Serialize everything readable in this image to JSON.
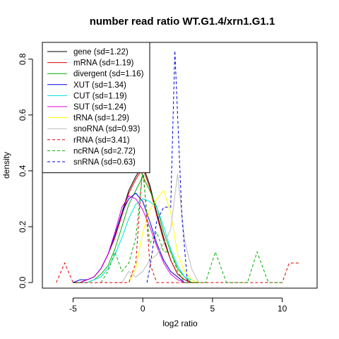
{
  "chart_data": {
    "type": "line",
    "title": "number read ratio WT.G1.4/xrn1.G1.1",
    "xlabel": "log2 ratio",
    "ylabel": "density",
    "xlim": [
      -7.2,
      12.5
    ],
    "ylim": [
      -0.02,
      0.86
    ],
    "x_ticks": [
      -5,
      0,
      5,
      10
    ],
    "y_ticks": [
      0.0,
      0.2,
      0.4,
      0.6,
      0.8
    ],
    "grid": false,
    "legend_position": "top-left",
    "series": [
      {
        "name": "gene (sd=1.22)",
        "color": "#000000",
        "dash": "solid",
        "x": [
          -5,
          -4.5,
          -4,
          -3.5,
          -3,
          -2.5,
          -2,
          -1.5,
          -1,
          -0.5,
          0,
          0.5,
          1,
          1.5,
          2,
          2.5,
          3,
          3.5,
          4
        ],
        "y": [
          0.0,
          0.0,
          0.01,
          0.02,
          0.05,
          0.1,
          0.17,
          0.25,
          0.33,
          0.38,
          0.42,
          0.35,
          0.25,
          0.16,
          0.08,
          0.03,
          0.01,
          0.0,
          0.0
        ]
      },
      {
        "name": "mRNA (sd=1.19)",
        "color": "#df0000",
        "dash": "solid",
        "x": [
          -5,
          -4.5,
          -4,
          -3.5,
          -3,
          -2.5,
          -2,
          -1.5,
          -1,
          -0.5,
          0,
          0.5,
          1,
          1.5,
          2,
          2.5,
          3,
          3.5,
          4
        ],
        "y": [
          0.0,
          0.0,
          0.01,
          0.02,
          0.05,
          0.1,
          0.16,
          0.24,
          0.32,
          0.37,
          0.41,
          0.34,
          0.24,
          0.15,
          0.08,
          0.03,
          0.01,
          0.0,
          0.0
        ]
      },
      {
        "name": "divergent (sd=1.16)",
        "color": "#00b000",
        "dash": "solid",
        "x": [
          -5,
          -4.5,
          -4,
          -3.5,
          -3,
          -2.5,
          -2,
          -1.5,
          -1,
          -0.5,
          0,
          0.5,
          1,
          1.5,
          2,
          2.5,
          3,
          3.5,
          4
        ],
        "y": [
          0.0,
          0.0,
          0.0,
          0.01,
          0.03,
          0.06,
          0.12,
          0.2,
          0.28,
          0.33,
          0.38,
          0.33,
          0.27,
          0.18,
          0.11,
          0.05,
          0.02,
          0.0,
          0.0
        ]
      },
      {
        "name": "XUT (sd=1.34)",
        "color": "#0000dd",
        "dash": "solid",
        "x": [
          -5,
          -4.5,
          -4,
          -3.5,
          -3,
          -2.5,
          -2,
          -1.5,
          -1,
          -0.5,
          0,
          0.5,
          1,
          1.5,
          2,
          2.5,
          3,
          3.5
        ],
        "y": [
          0.0,
          0.01,
          0.01,
          0.02,
          0.05,
          0.1,
          0.17,
          0.25,
          0.3,
          0.32,
          0.29,
          0.22,
          0.14,
          0.08,
          0.04,
          0.02,
          0.0,
          0.0
        ]
      },
      {
        "name": "CUT (sd=1.19)",
        "color": "#00dddd",
        "dash": "solid",
        "x": [
          -4.5,
          -4,
          -3.5,
          -3,
          -2.5,
          -2,
          -1.5,
          -1,
          -0.5,
          0,
          0.5,
          1,
          1.5,
          2,
          2.5,
          3,
          3.5,
          4
        ],
        "y": [
          0.0,
          0.0,
          0.01,
          0.02,
          0.05,
          0.1,
          0.16,
          0.23,
          0.28,
          0.3,
          0.29,
          0.27,
          0.2,
          0.12,
          0.06,
          0.02,
          0.01,
          0.0
        ]
      },
      {
        "name": "SUT (sd=1.24)",
        "color": "#dd00dd",
        "dash": "solid",
        "x": [
          -4.5,
          -4,
          -3.5,
          -3,
          -2.5,
          -2,
          -1.5,
          -1,
          -0.5,
          0,
          0.5,
          1,
          1.5,
          2,
          2.5,
          3,
          3.5
        ],
        "y": [
          0.0,
          0.01,
          0.02,
          0.05,
          0.1,
          0.18,
          0.27,
          0.31,
          0.3,
          0.26,
          0.2,
          0.13,
          0.07,
          0.03,
          0.01,
          0.0,
          0.0
        ]
      },
      {
        "name": "tRNA (sd=1.29)",
        "color": "#ffff00",
        "dash": "solid",
        "x": [
          -1,
          -0.5,
          0,
          0.5,
          1,
          1.5,
          2,
          2.5,
          3,
          3.5,
          4
        ],
        "y": [
          0.0,
          0.05,
          0.18,
          0.26,
          0.3,
          0.33,
          0.25,
          0.1,
          0.04,
          0.01,
          0.0
        ]
      },
      {
        "name": "snoRNA (sd=0.93)",
        "color": "#bebebe",
        "dash": "solid",
        "x": [
          -2,
          -1.5,
          -1,
          -0.5,
          0,
          0.5,
          1,
          1.5,
          2,
          2.5,
          3,
          3.5,
          4
        ],
        "y": [
          0.0,
          0.0,
          0.04,
          0.02,
          0.04,
          0.08,
          0.1,
          0.14,
          0.19,
          0.39,
          0.15,
          0.05,
          0.0
        ]
      },
      {
        "name": "rRNA (sd=3.41)",
        "color": "#df0000",
        "dash": "dashed",
        "x": [
          -6.2,
          -5.6,
          -5,
          -4.5,
          -4,
          -3,
          -2,
          -1,
          -0.5,
          0,
          0.5,
          1,
          2,
          3,
          5,
          7,
          9,
          10,
          10.5,
          11.2
        ],
        "y": [
          0.0,
          0.07,
          0.0,
          0.0,
          0.0,
          0.0,
          0.0,
          0.0,
          0.07,
          0.43,
          0.07,
          0.0,
          0.0,
          0.0,
          0.0,
          0.0,
          0.0,
          0.0,
          0.07,
          0.07
        ]
      },
      {
        "name": "ncRNA (sd=2.72)",
        "color": "#00b000",
        "dash": "dashed",
        "x": [
          -3,
          -2.5,
          -2,
          -1.5,
          -1,
          -0.5,
          0,
          0.5,
          1,
          1.5,
          2,
          2.5,
          3,
          3.5,
          4,
          4.5,
          5.2,
          6,
          7,
          7.5,
          8.2,
          9,
          10
        ],
        "y": [
          0.0,
          0.04,
          0.11,
          0.04,
          0.07,
          0.16,
          0.4,
          0.14,
          0.18,
          0.11,
          0.11,
          0.04,
          0.0,
          0.0,
          0.0,
          0.0,
          0.11,
          0.0,
          0.0,
          0.0,
          0.11,
          0.0,
          0.0
        ]
      },
      {
        "name": "snRNA (sd=0.63)",
        "color": "#0000dd",
        "dash": "dashed",
        "x": [
          0.3,
          0.5,
          1,
          1.5,
          2,
          2.3,
          2.8,
          3.2
        ],
        "y": [
          0.0,
          0.05,
          0.22,
          0.27,
          0.27,
          0.83,
          0.24,
          0.0
        ]
      }
    ]
  }
}
